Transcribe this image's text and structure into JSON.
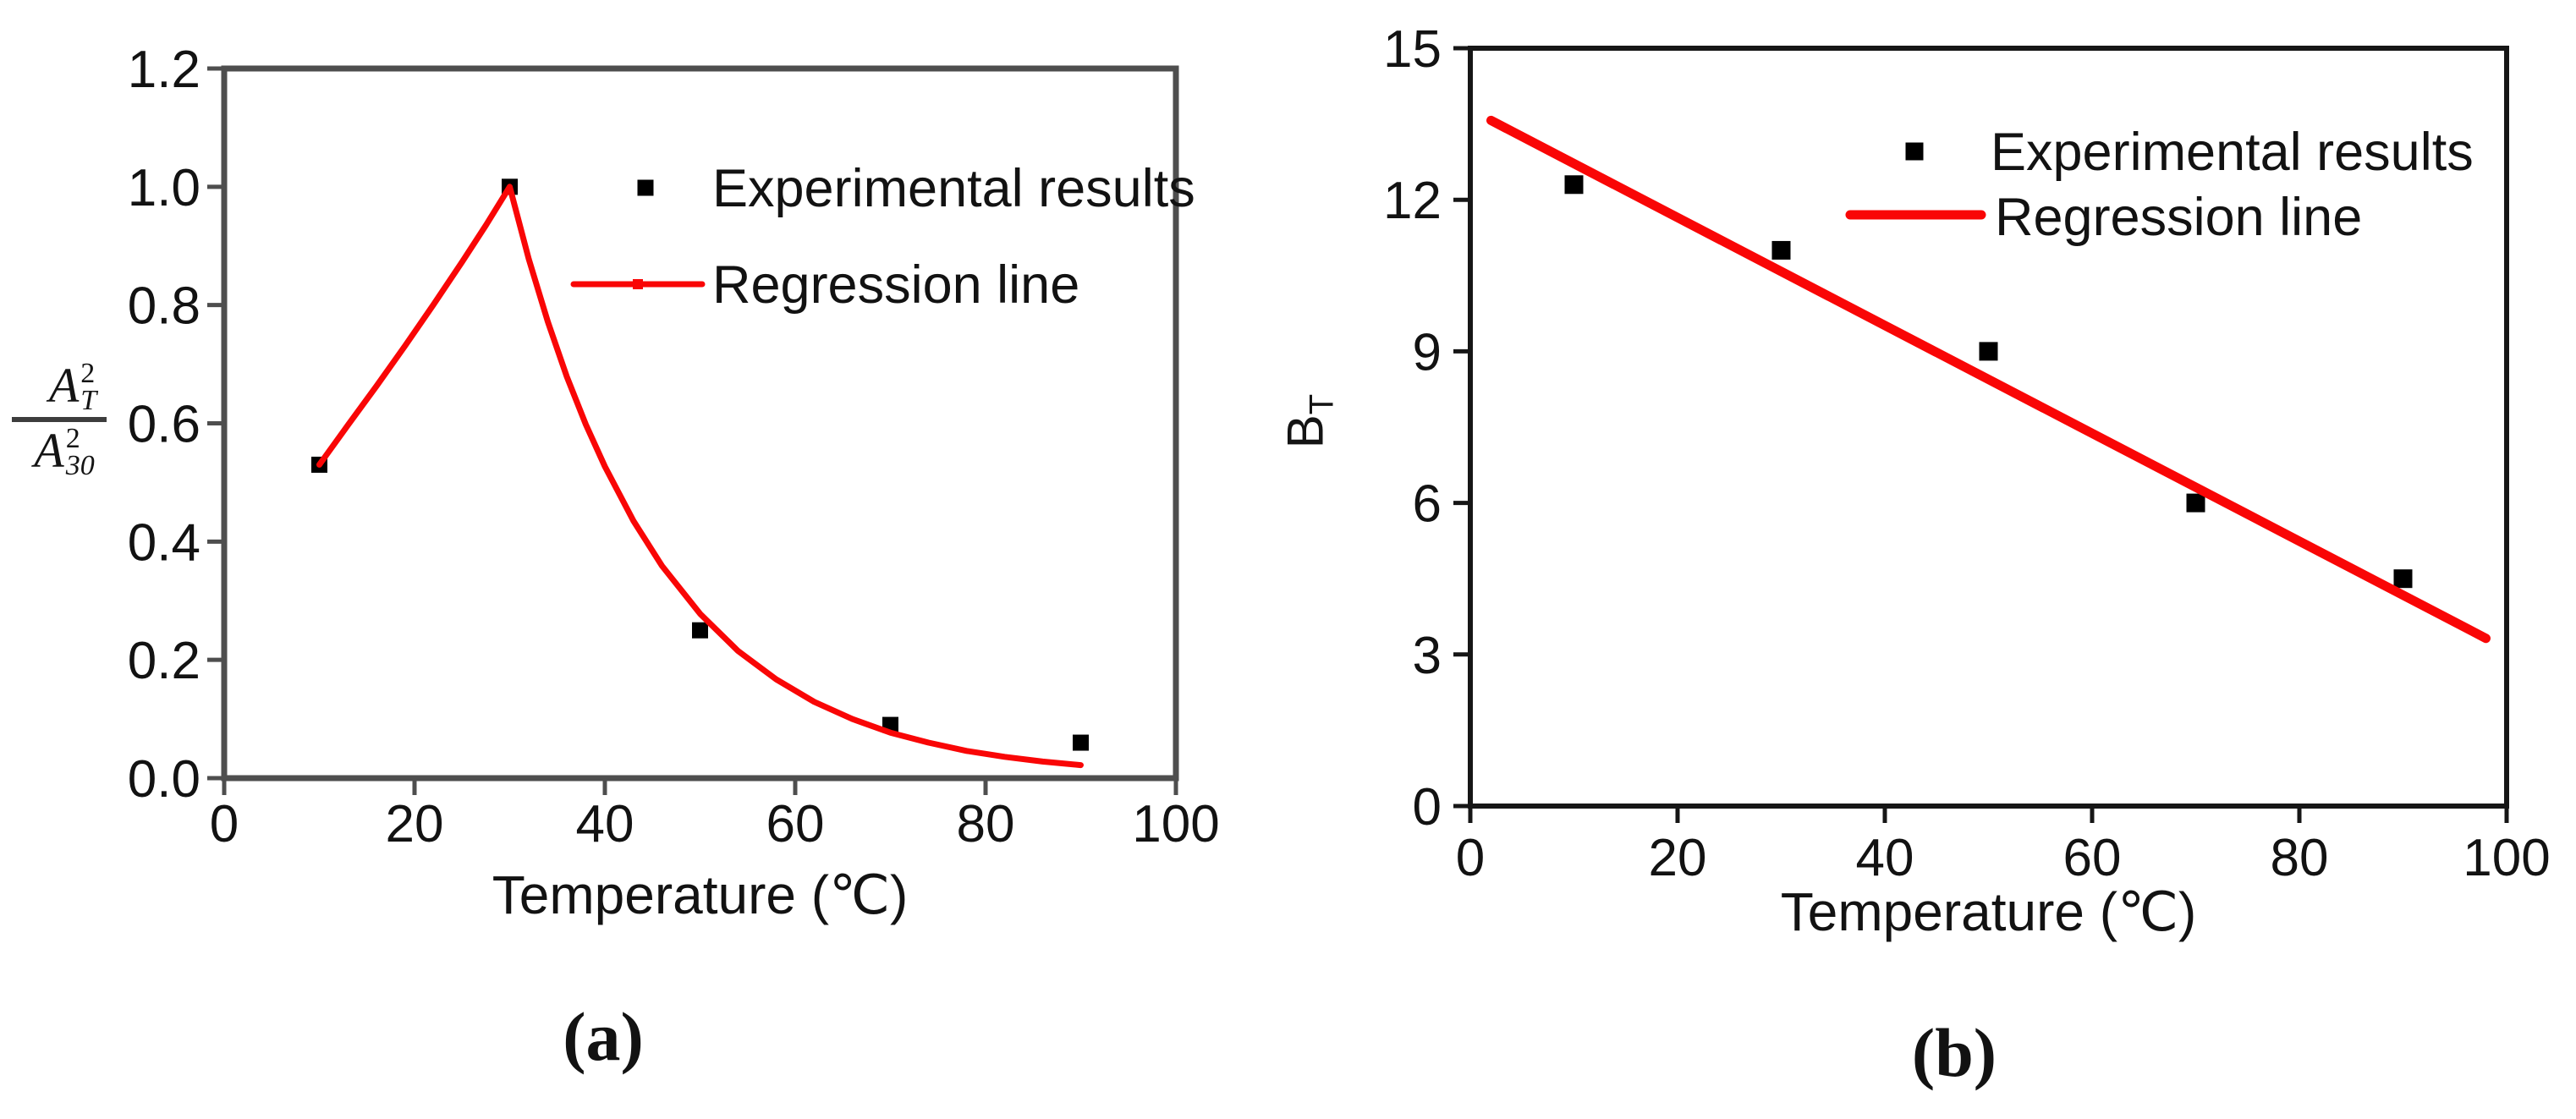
{
  "page": {
    "background": "#ffffff"
  },
  "chart_data": [
    {
      "id": "a",
      "type": "scatter",
      "caption": "(a)",
      "xlabel": "Temperature (℃)",
      "ylabel": {
        "style": "fraction",
        "numerator": {
          "base": "A",
          "sup": "2",
          "sub": "T"
        },
        "denominator": {
          "base": "A",
          "sup": "2",
          "sub": "30"
        }
      },
      "xlim": [
        0,
        100
      ],
      "ylim": [
        0,
        1.2
      ],
      "xticks": [
        0,
        20,
        40,
        60,
        80,
        100
      ],
      "xtick_labels": [
        "0",
        "20",
        "40",
        "60",
        "80",
        "100"
      ],
      "yticks": [
        0,
        0.2,
        0.4,
        0.6,
        0.8,
        1.0,
        1.2
      ],
      "ytick_labels": [
        "0.0",
        "0.2",
        "0.4",
        "0.6",
        "0.8",
        "1.0",
        "1.2"
      ],
      "grid": false,
      "legend": {
        "position": "top-right",
        "entries": [
          {
            "label": "Experimental results",
            "swatch": "black-square"
          },
          {
            "label": "Regression line",
            "swatch": "red-line-dot"
          }
        ]
      },
      "series": [
        {
          "name": "Experimental results",
          "type": "scatter",
          "marker": "square",
          "color": "#000000",
          "points": [
            [
              10,
              0.53
            ],
            [
              30,
              1.0
            ],
            [
              50,
              0.25
            ],
            [
              70,
              0.09
            ],
            [
              90,
              0.06
            ]
          ]
        },
        {
          "name": "Regression line",
          "type": "line",
          "color": "#f90606",
          "points": [
            [
              10,
              0.53
            ],
            [
              13,
              0.597
            ],
            [
              16,
              0.663
            ],
            [
              19,
              0.731
            ],
            [
              22,
              0.801
            ],
            [
              25,
              0.873
            ],
            [
              27.5,
              0.935
            ],
            [
              30,
              1.0
            ],
            [
              32,
              0.878
            ],
            [
              34,
              0.772
            ],
            [
              36,
              0.679
            ],
            [
              38,
              0.598
            ],
            [
              40,
              0.527
            ],
            [
              43,
              0.435
            ],
            [
              46,
              0.359
            ],
            [
              50,
              0.278
            ],
            [
              54,
              0.215
            ],
            [
              58,
              0.167
            ],
            [
              62,
              0.129
            ],
            [
              66,
              0.1
            ],
            [
              70,
              0.077
            ],
            [
              74,
              0.06
            ],
            [
              78,
              0.046
            ],
            [
              82,
              0.036
            ],
            [
              86,
              0.028
            ],
            [
              90,
              0.022
            ]
          ]
        }
      ],
      "colors": {
        "marker": "#000000",
        "regression": "#f90606",
        "axis": "#4e4e4e",
        "text": "#121212"
      }
    },
    {
      "id": "b",
      "type": "scatter",
      "caption": "(b)",
      "xlabel": "Temperature (℃)",
      "ylabel": {
        "style": "subscript",
        "base": "B",
        "sub": "T"
      },
      "xlim": [
        0,
        100
      ],
      "ylim": [
        0,
        15
      ],
      "xticks": [
        0,
        20,
        40,
        60,
        80,
        100
      ],
      "xtick_labels": [
        "0",
        "20",
        "40",
        "60",
        "80",
        "100"
      ],
      "yticks": [
        0,
        3,
        6,
        9,
        12,
        15
      ],
      "ytick_labels": [
        "0",
        "3",
        "6",
        "9",
        "12",
        "15"
      ],
      "grid": false,
      "legend": {
        "position": "top-right",
        "entries": [
          {
            "label": "Experimental results",
            "swatch": "black-square"
          },
          {
            "label": "Regression line",
            "swatch": "red-line"
          }
        ]
      },
      "series": [
        {
          "name": "Experimental results",
          "type": "scatter",
          "marker": "square",
          "color": "#000000",
          "points": [
            [
              10,
              12.3
            ],
            [
              30,
              11.0
            ],
            [
              50,
              9.0
            ],
            [
              70,
              6.0
            ],
            [
              90,
              4.5
            ]
          ]
        },
        {
          "name": "Regression line",
          "type": "line",
          "color": "#f90606",
          "points": [
            [
              2,
              13.57
            ],
            [
              98,
              3.32
            ]
          ]
        }
      ],
      "colors": {
        "marker": "#000000",
        "regression": "#f90606",
        "axis": "#161616",
        "text": "#121212"
      }
    }
  ]
}
